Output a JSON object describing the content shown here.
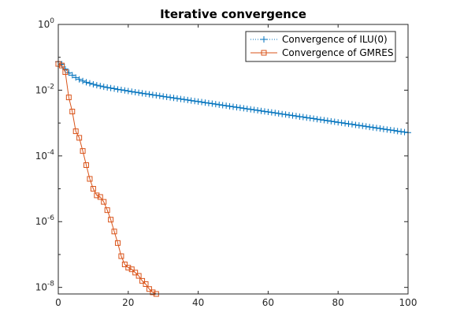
{
  "chart_data": {
    "type": "line",
    "title": "Iterative convergence",
    "xlabel": "",
    "ylabel": "",
    "xlim": [
      0,
      100
    ],
    "ylim_log10": [
      -8.2,
      0
    ],
    "y_scale": "log",
    "grid": false,
    "legend_position": "top-right",
    "x_ticks": [
      0,
      20,
      40,
      60,
      80,
      100
    ],
    "y_ticks": [
      {
        "base": "10",
        "exp": "0",
        "value": 1
      },
      {
        "base": "10",
        "exp": "-2",
        "value": 0.01
      },
      {
        "base": "10",
        "exp": "-4",
        "value": 0.0001
      },
      {
        "base": "10",
        "exp": "-6",
        "value": 1e-06
      },
      {
        "base": "10",
        "exp": "-8",
        "value": 1e-08
      }
    ],
    "series": [
      {
        "name": "Convergence of ILU(0)",
        "color": "#0072BD",
        "line_style": "dotted",
        "marker": "plus",
        "x": [
          0,
          1,
          2,
          3,
          4,
          5,
          6,
          7,
          8,
          9,
          10,
          11,
          12,
          13,
          14,
          15,
          16,
          17,
          18,
          19,
          20,
          21,
          22,
          23,
          24,
          25,
          26,
          27,
          28,
          29,
          30,
          31,
          32,
          33,
          34,
          35,
          36,
          37,
          38,
          39,
          40,
          41,
          42,
          43,
          44,
          45,
          46,
          47,
          48,
          49,
          50,
          51,
          52,
          53,
          54,
          55,
          56,
          57,
          58,
          59,
          60,
          61,
          62,
          63,
          64,
          65,
          66,
          67,
          68,
          69,
          70,
          71,
          72,
          73,
          74,
          75,
          76,
          77,
          78,
          79,
          80,
          81,
          82,
          83,
          84,
          85,
          86,
          87,
          88,
          89,
          90,
          91,
          92,
          93,
          94,
          95,
          96,
          97,
          98,
          99,
          100
        ],
        "y": [
          0.0733,
          0.0616,
          0.044,
          0.0339,
          0.0286,
          0.0242,
          0.0213,
          0.0191,
          0.0174,
          0.0162,
          0.0151,
          0.0142,
          0.0134,
          0.0127,
          0.0121,
          0.0116,
          0.0111,
          0.0106,
          0.0102,
          0.00979,
          0.0094,
          0.00903,
          0.00869,
          0.00837,
          0.00806,
          0.00776,
          0.00748,
          0.00721,
          0.00695,
          0.0067,
          0.00646,
          0.00623,
          0.00601,
          0.0058,
          0.00559,
          0.00539,
          0.0052,
          0.00501,
          0.00483,
          0.00466,
          0.0045,
          0.00434,
          0.00418,
          0.00403,
          0.00389,
          0.00375,
          0.00362,
          0.00349,
          0.00336,
          0.00324,
          0.00313,
          0.00302,
          0.00291,
          0.00281,
          0.00271,
          0.00261,
          0.00252,
          0.00243,
          0.00234,
          0.00226,
          0.00218,
          0.0021,
          0.00203,
          0.00195,
          0.00188,
          0.00182,
          0.00175,
          0.00169,
          0.00163,
          0.00157,
          0.00152,
          0.00146,
          0.00141,
          0.00136,
          0.00131,
          0.00126,
          0.00122,
          0.00118,
          0.00113,
          0.00109,
          0.00105,
          0.00102,
          0.00098,
          0.000945,
          0.000911,
          0.000879,
          0.000848,
          0.000818,
          0.000789,
          0.000761,
          0.000734,
          0.000708,
          0.000682,
          0.000658,
          0.000635,
          0.000612,
          0.00059,
          0.000569,
          0.000549,
          0.00053,
          0.000511
        ]
      },
      {
        "name": "Convergence of GMRES",
        "color": "#D95319",
        "line_style": "solid",
        "marker": "square",
        "x": [
          0,
          1,
          2,
          3,
          4,
          5,
          6,
          7,
          8,
          9,
          10,
          11,
          12,
          13,
          14,
          15,
          16,
          17,
          18,
          19,
          20,
          21,
          22,
          23,
          24,
          25,
          26,
          27,
          28
        ],
        "y": [
          0.0631,
          0.0562,
          0.0355,
          0.00603,
          0.00224,
          0.000562,
          0.000355,
          0.000141,
          5.25e-05,
          2e-05,
          1e-05,
          6.31e-06,
          5.62e-06,
          4e-06,
          2.24e-06,
          1.15e-06,
          5.01e-07,
          2.24e-07,
          8.91e-08,
          5.01e-08,
          3.98e-08,
          3.55e-08,
          2.82e-08,
          2.24e-08,
          1.58e-08,
          1.26e-08,
          8.91e-09,
          7.08e-09,
          6.31e-09
        ]
      }
    ]
  }
}
